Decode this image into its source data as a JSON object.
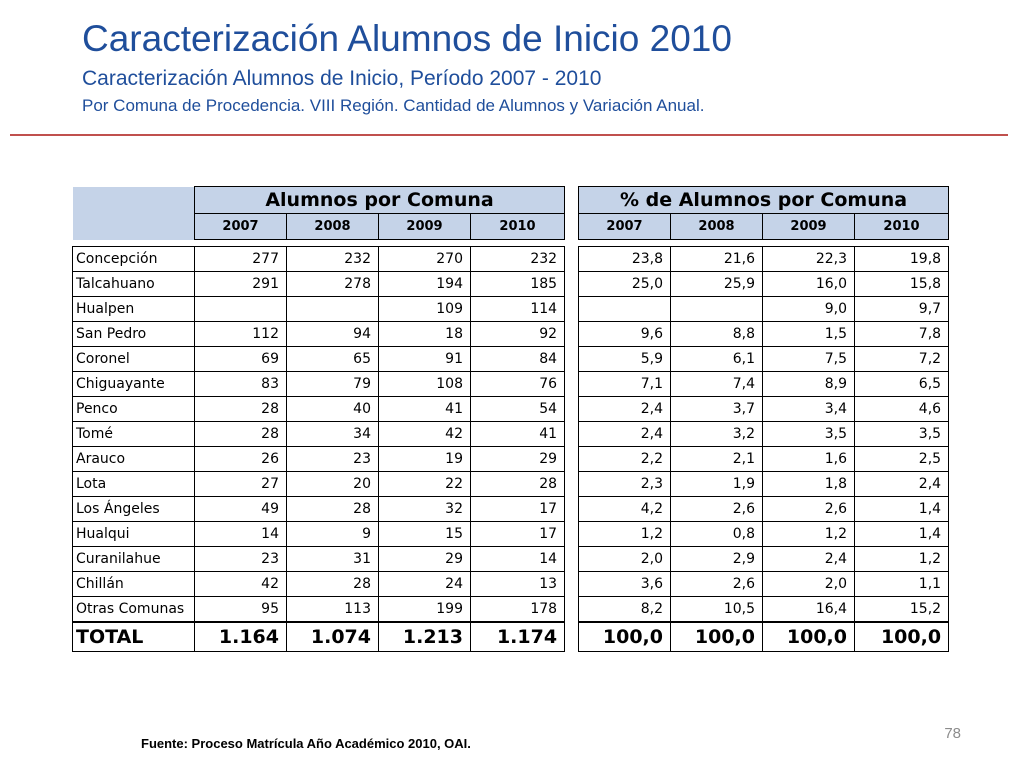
{
  "slide": {
    "title": "Caracterización Alumnos de Inicio 2010",
    "subtitle": "Caracterización Alumnos de Inicio, Período 2007 - 2010",
    "subtitle2": "Por Comuna de Procedencia. VIII Región. Cantidad de Alumnos y Variación Anual.",
    "source": "Fuente: Proceso Matrícula Año Académico 2010, OAI.",
    "page_number": "78",
    "accent_color": "#1F4E9B",
    "rule_color": "#C0504D",
    "header_fill": "#C5D3E8"
  },
  "left_table": {
    "header": "Alumnos por Comuna",
    "years": [
      "2007",
      "2008",
      "2009",
      "2010"
    ]
  },
  "right_table": {
    "header": "% de Alumnos por Comuna",
    "years": [
      "2007",
      "2008",
      "2009",
      "2010"
    ]
  },
  "rows": [
    {
      "comuna": "Concepción",
      "counts": [
        "277",
        "232",
        "270",
        "232"
      ],
      "pct": [
        "23,8",
        "21,6",
        "22,3",
        "19,8"
      ]
    },
    {
      "comuna": "Talcahuano",
      "counts": [
        "291",
        "278",
        "194",
        "185"
      ],
      "pct": [
        "25,0",
        "25,9",
        "16,0",
        "15,8"
      ]
    },
    {
      "comuna": "Hualpen",
      "counts": [
        "",
        "",
        "109",
        "114"
      ],
      "pct": [
        "",
        "",
        "9,0",
        "9,7"
      ]
    },
    {
      "comuna": "San Pedro",
      "counts": [
        "112",
        "94",
        "18",
        "92"
      ],
      "pct": [
        "9,6",
        "8,8",
        "1,5",
        "7,8"
      ]
    },
    {
      "comuna": "Coronel",
      "counts": [
        "69",
        "65",
        "91",
        "84"
      ],
      "pct": [
        "5,9",
        "6,1",
        "7,5",
        "7,2"
      ]
    },
    {
      "comuna": "Chiguayante",
      "counts": [
        "83",
        "79",
        "108",
        "76"
      ],
      "pct": [
        "7,1",
        "7,4",
        "8,9",
        "6,5"
      ]
    },
    {
      "comuna": "Penco",
      "counts": [
        "28",
        "40",
        "41",
        "54"
      ],
      "pct": [
        "2,4",
        "3,7",
        "3,4",
        "4,6"
      ]
    },
    {
      "comuna": "Tomé",
      "counts": [
        "28",
        "34",
        "42",
        "41"
      ],
      "pct": [
        "2,4",
        "3,2",
        "3,5",
        "3,5"
      ]
    },
    {
      "comuna": "Arauco",
      "counts": [
        "26",
        "23",
        "19",
        "29"
      ],
      "pct": [
        "2,2",
        "2,1",
        "1,6",
        "2,5"
      ]
    },
    {
      "comuna": "Lota",
      "counts": [
        "27",
        "20",
        "22",
        "28"
      ],
      "pct": [
        "2,3",
        "1,9",
        "1,8",
        "2,4"
      ]
    },
    {
      "comuna": "Los Ángeles",
      "counts": [
        "49",
        "28",
        "32",
        "17"
      ],
      "pct": [
        "4,2",
        "2,6",
        "2,6",
        "1,4"
      ]
    },
    {
      "comuna": "Hualqui",
      "counts": [
        "14",
        "9",
        "15",
        "17"
      ],
      "pct": [
        "1,2",
        "0,8",
        "1,2",
        "1,4"
      ]
    },
    {
      "comuna": "Curanilahue",
      "counts": [
        "23",
        "31",
        "29",
        "14"
      ],
      "pct": [
        "2,0",
        "2,9",
        "2,4",
        "1,2"
      ]
    },
    {
      "comuna": "Chillán",
      "counts": [
        "42",
        "28",
        "24",
        "13"
      ],
      "pct": [
        "3,6",
        "2,6",
        "2,0",
        "1,1"
      ]
    },
    {
      "comuna": "Otras Comunas",
      "counts": [
        "95",
        "113",
        "199",
        "178"
      ],
      "pct": [
        "8,2",
        "10,5",
        "16,4",
        "15,2"
      ]
    }
  ],
  "total": {
    "label": "TOTAL",
    "counts": [
      "1.164",
      "1.074",
      "1.213",
      "1.174"
    ],
    "pct": [
      "100,0",
      "100,0",
      "100,0",
      "100,0"
    ]
  }
}
